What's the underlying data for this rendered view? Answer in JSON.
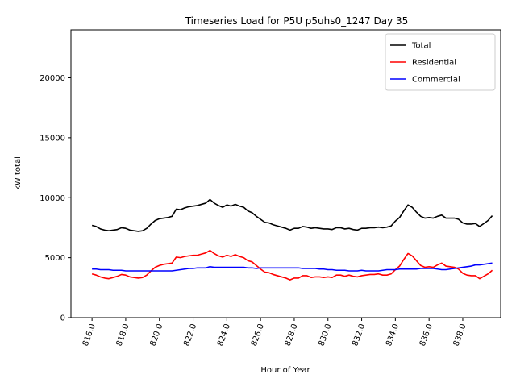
{
  "chart_data": {
    "type": "line",
    "title": "Timeseries Load for P5U p5uhs0_1247  Day 35",
    "xlabel": "Hour of Year",
    "ylabel": "kW total",
    "xlim": [
      814.75,
      840.25
    ],
    "ylim": [
      0,
      24000
    ],
    "xticks": [
      816,
      818,
      820,
      822,
      824,
      826,
      828,
      830,
      832,
      834,
      836,
      838
    ],
    "xtick_labels": [
      "816.0",
      "818.0",
      "820.0",
      "822.0",
      "824.0",
      "826.0",
      "828.0",
      "830.0",
      "832.0",
      "834.0",
      "836.0",
      "838.0"
    ],
    "yticks": [
      0,
      5000,
      10000,
      15000,
      20000
    ],
    "ytick_labels": [
      "0",
      "5000",
      "10000",
      "15000",
      "20000"
    ],
    "legend_position": "top-right",
    "x": [
      816.0,
      816.25,
      816.5,
      816.75,
      817.0,
      817.25,
      817.5,
      817.75,
      818.0,
      818.25,
      818.5,
      818.75,
      819.0,
      819.25,
      819.5,
      819.75,
      820.0,
      820.25,
      820.5,
      820.75,
      821.0,
      821.25,
      821.5,
      821.75,
      822.0,
      822.25,
      822.5,
      822.75,
      823.0,
      823.25,
      823.5,
      823.75,
      824.0,
      824.25,
      824.5,
      824.75,
      825.0,
      825.25,
      825.5,
      825.75,
      826.0,
      826.25,
      826.5,
      826.75,
      827.0,
      827.25,
      827.5,
      827.75,
      828.0,
      828.25,
      828.5,
      828.75,
      829.0,
      829.25,
      829.5,
      829.75,
      830.0,
      830.25,
      830.5,
      830.75,
      831.0,
      831.25,
      831.5,
      831.75,
      832.0,
      832.25,
      832.5,
      832.75,
      833.0,
      833.25,
      833.5,
      833.75,
      834.0,
      834.25,
      834.5,
      834.75,
      835.0,
      835.25,
      835.5,
      835.75,
      836.0,
      836.25,
      836.5,
      836.75,
      837.0,
      837.25,
      837.5,
      837.75,
      838.0,
      838.25,
      838.5,
      838.75,
      839.0,
      839.25,
      839.5,
      839.75
    ],
    "series": [
      {
        "name": "Total",
        "color": "#000000",
        "values": [
          7700,
          7600,
          7400,
          7300,
          7250,
          7300,
          7350,
          7500,
          7450,
          7300,
          7250,
          7200,
          7250,
          7450,
          7800,
          8100,
          8250,
          8300,
          8350,
          8450,
          9050,
          9000,
          9150,
          9250,
          9300,
          9350,
          9450,
          9550,
          9850,
          9550,
          9350,
          9200,
          9400,
          9300,
          9450,
          9300,
          9200,
          8900,
          8750,
          8450,
          8200,
          7950,
          7900,
          7750,
          7650,
          7550,
          7450,
          7300,
          7450,
          7450,
          7600,
          7550,
          7450,
          7500,
          7450,
          7400,
          7400,
          7350,
          7500,
          7500,
          7400,
          7450,
          7350,
          7300,
          7450,
          7450,
          7500,
          7500,
          7550,
          7500,
          7550,
          7650,
          8050,
          8350,
          8900,
          9400,
          9200,
          8800,
          8450,
          8300,
          8350,
          8300,
          8450,
          8550,
          8300,
          8300,
          8300,
          8200,
          7900,
          7800,
          7800,
          7850,
          7600,
          7850,
          8100,
          8500
        ]
      },
      {
        "name": "Residential",
        "color": "#ff0000",
        "values": [
          3650,
          3550,
          3400,
          3300,
          3250,
          3350,
          3450,
          3600,
          3550,
          3400,
          3350,
          3300,
          3350,
          3550,
          3900,
          4200,
          4350,
          4450,
          4500,
          4550,
          5050,
          5000,
          5100,
          5150,
          5200,
          5200,
          5300,
          5400,
          5600,
          5350,
          5150,
          5050,
          5200,
          5100,
          5250,
          5100,
          5000,
          4750,
          4650,
          4350,
          4050,
          3800,
          3750,
          3600,
          3500,
          3400,
          3300,
          3150,
          3300,
          3300,
          3500,
          3500,
          3350,
          3400,
          3400,
          3350,
          3400,
          3350,
          3550,
          3550,
          3450,
          3550,
          3450,
          3400,
          3500,
          3550,
          3600,
          3600,
          3650,
          3550,
          3550,
          3650,
          4000,
          4300,
          4850,
          5350,
          5150,
          4750,
          4350,
          4200,
          4250,
          4200,
          4400,
          4550,
          4300,
          4250,
          4200,
          4050,
          3700,
          3550,
          3500,
          3500,
          3250,
          3450,
          3650,
          3950
        ]
      },
      {
        "name": "Commercial",
        "color": "#0000ff",
        "values": [
          4050,
          4050,
          4000,
          4000,
          4000,
          3950,
          3950,
          3950,
          3900,
          3900,
          3900,
          3900,
          3900,
          3900,
          3900,
          3900,
          3900,
          3900,
          3900,
          3900,
          3950,
          4000,
          4050,
          4100,
          4100,
          4150,
          4150,
          4150,
          4250,
          4200,
          4200,
          4200,
          4200,
          4200,
          4200,
          4200,
          4200,
          4150,
          4150,
          4100,
          4150,
          4150,
          4150,
          4150,
          4150,
          4150,
          4150,
          4150,
          4150,
          4150,
          4100,
          4100,
          4100,
          4100,
          4050,
          4050,
          4000,
          4000,
          3950,
          3950,
          3950,
          3900,
          3900,
          3900,
          3950,
          3900,
          3900,
          3900,
          3900,
          3950,
          4000,
          4000,
          4000,
          4050,
          4050,
          4050,
          4050,
          4050,
          4100,
          4100,
          4100,
          4100,
          4050,
          4000,
          4000,
          4050,
          4100,
          4150,
          4200,
          4250,
          4300,
          4400,
          4400,
          4450,
          4500,
          4550
        ]
      }
    ]
  }
}
